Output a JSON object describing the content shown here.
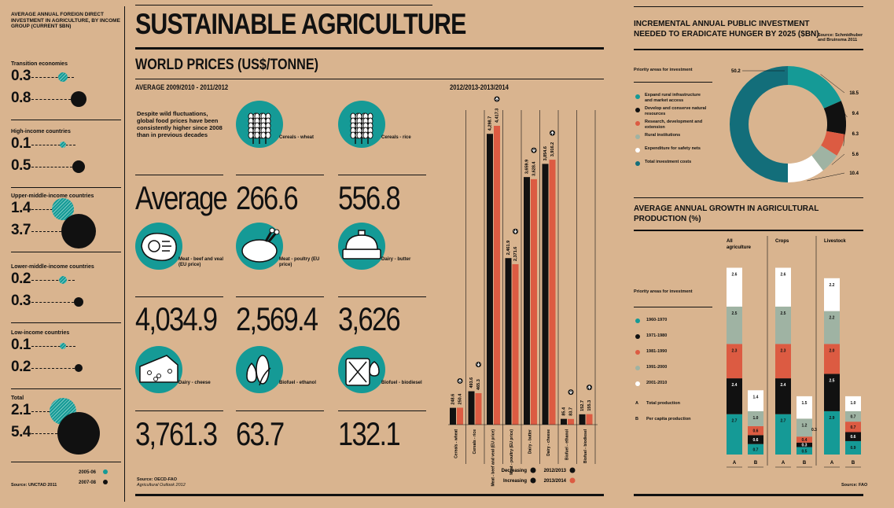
{
  "colors": {
    "background": "#d9b48f",
    "teal": "#159a96",
    "black": "#111111",
    "red": "#dc5b42",
    "gray": "#9fb3a3",
    "white": "#ffffff",
    "dark_teal": "#136e7a"
  },
  "left": {
    "title": "Average annual foreign direct investment in agriculture, by income group (current $bn)",
    "groups": [
      {
        "label": "Transition economies",
        "v2005": "0.3",
        "v2007": "0.8"
      },
      {
        "label": "High-income countries",
        "v2005": "0.1",
        "v2007": "0.5"
      },
      {
        "label": "Upper-middle-income countries",
        "v2005": "1.4",
        "v2007": "3.7"
      },
      {
        "label": "Lower-middle-income countries",
        "v2005": "0.2",
        "v2007": "0.3"
      },
      {
        "label": "Low-income countries",
        "v2005": "0.1",
        "v2007": "0.2"
      },
      {
        "label": "Total",
        "v2005": "2.1",
        "v2007": "5.4"
      }
    ],
    "legend_2005": "2005-06",
    "legend_2007": "2007-08",
    "source": "Source: UNCTAD 2011"
  },
  "main": {
    "title": "SUSTAINABLE AGRICULTURE",
    "subtitle": "WORLD PRICES (US$/TONNE)",
    "avg_label": "AVERAGE 2009/2010 - 2011/2012",
    "intro": "Despite wild fluctuations, global food prices have been consistently higher since 2008 than in previous decades",
    "average_word": "Average",
    "items": [
      {
        "label": "Cereals - wheat",
        "value": "266.6",
        "icon": "wheat-icon"
      },
      {
        "label": "Cereals - rice",
        "value": "556.8",
        "icon": "rice-icon"
      },
      {
        "label": "Meat - beef and veal (EU price)",
        "value": "4,034.9",
        "icon": "steak-icon"
      },
      {
        "label": "Meat - poultry (EU price)",
        "value": "2,569.4",
        "icon": "chicken-icon"
      },
      {
        "label": "Dairy - butter",
        "value": "3,626",
        "icon": "butter-icon"
      },
      {
        "label": "Dairy - cheese",
        "value": "3,761.3",
        "icon": "cheese-icon"
      },
      {
        "label": "Biofuel - ethanol",
        "value": "63.7",
        "icon": "corn-icon"
      },
      {
        "label": "Biofuel - biodiesel",
        "value": "132.1",
        "icon": "jerrycan-icon"
      }
    ],
    "source_line1": "Source: OECD-FAO",
    "source_line2": "Agricultural Outlook 2012"
  },
  "chart_data": [
    {
      "type": "bar",
      "title": "2012/2013-2013/2014",
      "categories": [
        "Cereals - wheat",
        "Cereals - rice",
        "Meat - beef and veal (EU price)",
        "Meat - poultry (EU price)",
        "Dairy - butter",
        "Dairy - cheese",
        "Biofuel - ethanol",
        "Biofuel - biodiesel"
      ],
      "series": [
        {
          "name": "2012/2013",
          "values": [
            248.6,
            493.6,
            4298.7,
            2461.9,
            3659.9,
            3854.6,
            85.4,
            152.7
          ]
        },
        {
          "name": "2013/2014",
          "values": [
            250.4,
            465.3,
            4417.3,
            2371.6,
            3628.4,
            3916.2,
            83.7,
            155.3
          ]
        }
      ],
      "trend": [
        "increasing",
        "decreasing",
        "increasing",
        "decreasing",
        "decreasing",
        "increasing",
        "decreasing",
        "increasing"
      ],
      "legend": {
        "decreasing": "Decreasing",
        "increasing": "Increasing"
      }
    },
    {
      "type": "pie",
      "title": "Incremental annual public investment needed to eradicate hunger by 2025 ($bn)",
      "source": "Source: Schmidhuber and Bruinsma 2011",
      "legend_title": "Priority areas for investment",
      "slices": [
        {
          "name": "Expand rural infrastructure and market access",
          "value": 18.5,
          "label": "18.5"
        },
        {
          "name": "Develop and conserve natural resources",
          "value": 9.4,
          "label": "9.4"
        },
        {
          "name": "Research, development and extension",
          "value": 6.3,
          "label": "6.3"
        },
        {
          "name": "Rural institutions",
          "value": 5.6,
          "label": "5.6"
        },
        {
          "name": "Expenditure for safety nets",
          "value": 10.4,
          "label": "10.4"
        },
        {
          "name": "Total investment costs",
          "value": 50.2,
          "label": "50.2"
        }
      ]
    },
    {
      "type": "bar",
      "title": "Average annual growth in agricultural production (%)",
      "source": "Source: FAO",
      "legend_title": "Priority areas for investment",
      "legend": [
        "1960-1970",
        "1971-1980",
        "1981-1990",
        "1991-2000",
        "2001-2010"
      ],
      "legend_a": "Total production",
      "legend_b": "Per capita production",
      "groups": [
        {
          "name": "All agriculture",
          "A": [
            2.7,
            2.4,
            2.3,
            2.5,
            2.6
          ],
          "B": [
            0.7,
            0.6,
            0.6,
            1.0,
            1.4
          ]
        },
        {
          "name": "Crops",
          "A": [
            2.7,
            2.4,
            2.3,
            2.5,
            2.6
          ],
          "B": [
            0.5,
            0.3,
            0.4,
            1.2,
            1.5
          ]
        },
        {
          "name": "Livestock",
          "A": [
            2.9,
            2.5,
            2.0,
            2.2,
            2.2
          ],
          "B": [
            0.9,
            0.6,
            0.7,
            0.7,
            1.0
          ]
        }
      ],
      "a_label": "A",
      "b_label": "B",
      "extra_label": "0.3"
    }
  ]
}
